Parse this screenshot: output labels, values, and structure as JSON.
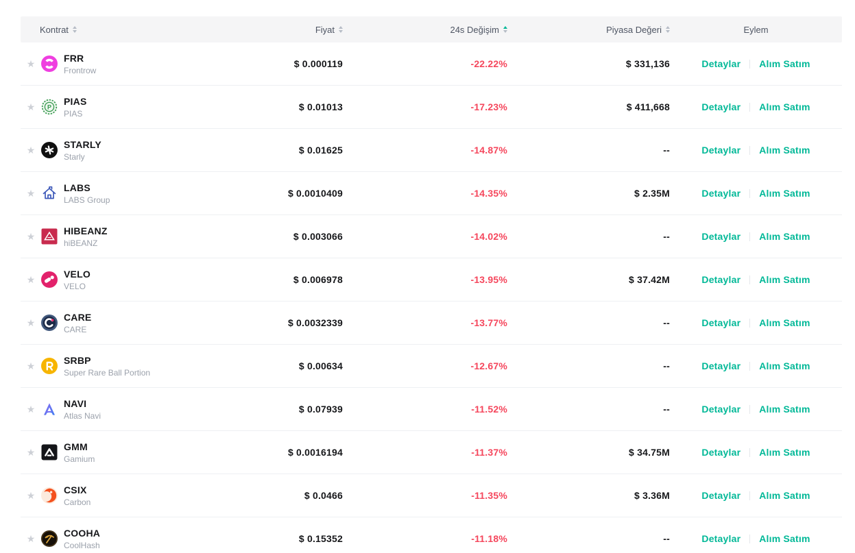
{
  "colors": {
    "accent_teal": "#00b897",
    "negative_red": "#f5465c",
    "header_bg": "#f5f5f6",
    "text_primary": "#16171a",
    "text_secondary": "#9ba1ab",
    "star_gray": "#cdd0d6"
  },
  "table": {
    "columns": [
      {
        "key": "contract",
        "label": "Kontrat",
        "sortable": true,
        "sort": "none"
      },
      {
        "key": "price",
        "label": "Fiyat",
        "sortable": true,
        "sort": "none"
      },
      {
        "key": "change",
        "label": "24s Değişim",
        "sortable": true,
        "sort": "asc"
      },
      {
        "key": "market_cap",
        "label": "Piyasa Değeri",
        "sortable": true,
        "sort": "none"
      },
      {
        "key": "action",
        "label": "Eylem",
        "sortable": false,
        "sort": "none"
      }
    ],
    "action_labels": {
      "details": "Detaylar",
      "trade": "Alım Satım"
    },
    "rows": [
      {
        "symbol": "FRR",
        "name": "Frontrow",
        "price": "$ 0.000119",
        "change": "-22.22%",
        "market_cap": "$ 331,136",
        "favorited": false,
        "icon": {
          "name": "frr-icon",
          "color": "#ef3fe0"
        }
      },
      {
        "symbol": "PIAS",
        "name": "PIAS",
        "price": "$ 0.01013",
        "change": "-17.23%",
        "market_cap": "$ 411,668",
        "favorited": false,
        "icon": {
          "name": "pias-icon",
          "color": "#35984c"
        }
      },
      {
        "symbol": "STARLY",
        "name": "Starly",
        "price": "$ 0.01625",
        "change": "-14.87%",
        "market_cap": "--",
        "favorited": false,
        "icon": {
          "name": "starly-icon",
          "color": "#101010"
        }
      },
      {
        "symbol": "LABS",
        "name": "LABS Group",
        "price": "$ 0.0010409",
        "change": "-14.35%",
        "market_cap": "$ 2.35M",
        "favorited": false,
        "icon": {
          "name": "labs-icon",
          "color": "#3d59b9"
        }
      },
      {
        "symbol": "HIBEANZ",
        "name": "hiBEANZ",
        "price": "$ 0.003066",
        "change": "-14.02%",
        "market_cap": "--",
        "favorited": false,
        "icon": {
          "name": "hibeanz-icon",
          "color": "#c82b4e"
        }
      },
      {
        "symbol": "VELO",
        "name": "VELO",
        "price": "$ 0.006978",
        "change": "-13.95%",
        "market_cap": "$ 37.42M",
        "favorited": false,
        "icon": {
          "name": "velo-icon",
          "color": "#e2226b"
        }
      },
      {
        "symbol": "CARE",
        "name": "CARE",
        "price": "$ 0.0032339",
        "change": "-13.77%",
        "market_cap": "--",
        "favorited": false,
        "icon": {
          "name": "care-icon",
          "color": "#1c2a47"
        }
      },
      {
        "symbol": "SRBP",
        "name": "Super Rare Ball Portion",
        "price": "$ 0.00634",
        "change": "-12.67%",
        "market_cap": "--",
        "favorited": false,
        "icon": {
          "name": "srbp-icon",
          "color": "#f7b500"
        }
      },
      {
        "symbol": "NAVI",
        "name": "Atlas Navi",
        "price": "$ 0.07939",
        "change": "-11.52%",
        "market_cap": "--",
        "favorited": false,
        "icon": {
          "name": "navi-icon",
          "color": "#5f74f1"
        }
      },
      {
        "symbol": "GMM",
        "name": "Gamium",
        "price": "$ 0.0016194",
        "change": "-11.37%",
        "market_cap": "$ 34.75M",
        "favorited": false,
        "icon": {
          "name": "gmm-icon",
          "color": "#141519"
        }
      },
      {
        "symbol": "CSIX",
        "name": "Carbon",
        "price": "$ 0.0466",
        "change": "-11.35%",
        "market_cap": "$ 3.36M",
        "favorited": false,
        "icon": {
          "name": "csix-icon",
          "color": "#f4511e"
        }
      },
      {
        "symbol": "COOHA",
        "name": "CoolHash",
        "price": "$ 0.15352",
        "change": "-11.18%",
        "market_cap": "--",
        "favorited": false,
        "icon": {
          "name": "cooha-icon",
          "color": "#d8a33c"
        }
      }
    ]
  }
}
